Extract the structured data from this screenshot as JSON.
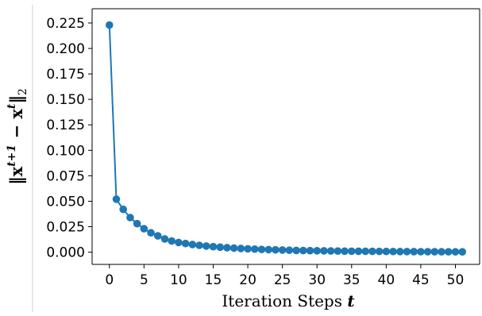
{
  "chart_data": {
    "type": "line",
    "title": "",
    "xlabel": "Iteration Steps t",
    "ylabel": "||x^{t+1} − x^t||_2",
    "xlim": [
      -2.5,
      53.5
    ],
    "ylim": [
      -0.012,
      0.239
    ],
    "xticks": [
      0,
      5,
      10,
      15,
      20,
      25,
      30,
      35,
      40,
      45,
      50
    ],
    "yticks": [
      0.0,
      0.025,
      0.05,
      0.075,
      0.1,
      0.125,
      0.15,
      0.175,
      0.2,
      0.225
    ],
    "xtick_labels": [
      "0",
      "5",
      "10",
      "15",
      "20",
      "25",
      "30",
      "35",
      "40",
      "45",
      "50"
    ],
    "ytick_labels": [
      "0.000",
      "0.025",
      "0.050",
      "0.075",
      "0.100",
      "0.125",
      "0.150",
      "0.175",
      "0.200",
      "0.225"
    ],
    "grid": false,
    "legend": "none",
    "colors": {
      "series": "#1f77b4",
      "axis": "#000000",
      "left_rule": "#cccccc"
    },
    "series": [
      {
        "x": [
          0,
          1,
          2,
          3,
          4,
          5,
          6,
          7,
          8,
          9,
          10,
          11,
          12,
          13,
          14,
          15,
          16,
          17,
          18,
          19,
          20,
          21,
          22,
          23,
          24,
          25,
          26,
          27,
          28,
          29,
          30,
          31,
          32,
          33,
          34,
          35,
          36,
          37,
          38,
          39,
          40,
          41,
          42,
          43,
          44,
          45,
          46,
          47,
          48,
          49,
          50,
          51
        ],
        "y": [
          0.223,
          0.052,
          0.042,
          0.034,
          0.028,
          0.023,
          0.019,
          0.016,
          0.013,
          0.011,
          0.0095,
          0.0085,
          0.0075,
          0.0067,
          0.006,
          0.0054,
          0.0049,
          0.0044,
          0.004,
          0.0036,
          0.0033,
          0.003,
          0.0027,
          0.0025,
          0.0023,
          0.0021,
          0.0019,
          0.0017,
          0.0016,
          0.0015,
          0.0014,
          0.0013,
          0.0012,
          0.0011,
          0.001,
          0.00095,
          0.0009,
          0.00085,
          0.0008,
          0.00075,
          0.0007,
          0.00065,
          0.0006,
          0.00056,
          0.00052,
          0.00048,
          0.00045,
          0.00042,
          0.0004,
          0.00038,
          0.00036,
          0.00034
        ]
      }
    ]
  }
}
